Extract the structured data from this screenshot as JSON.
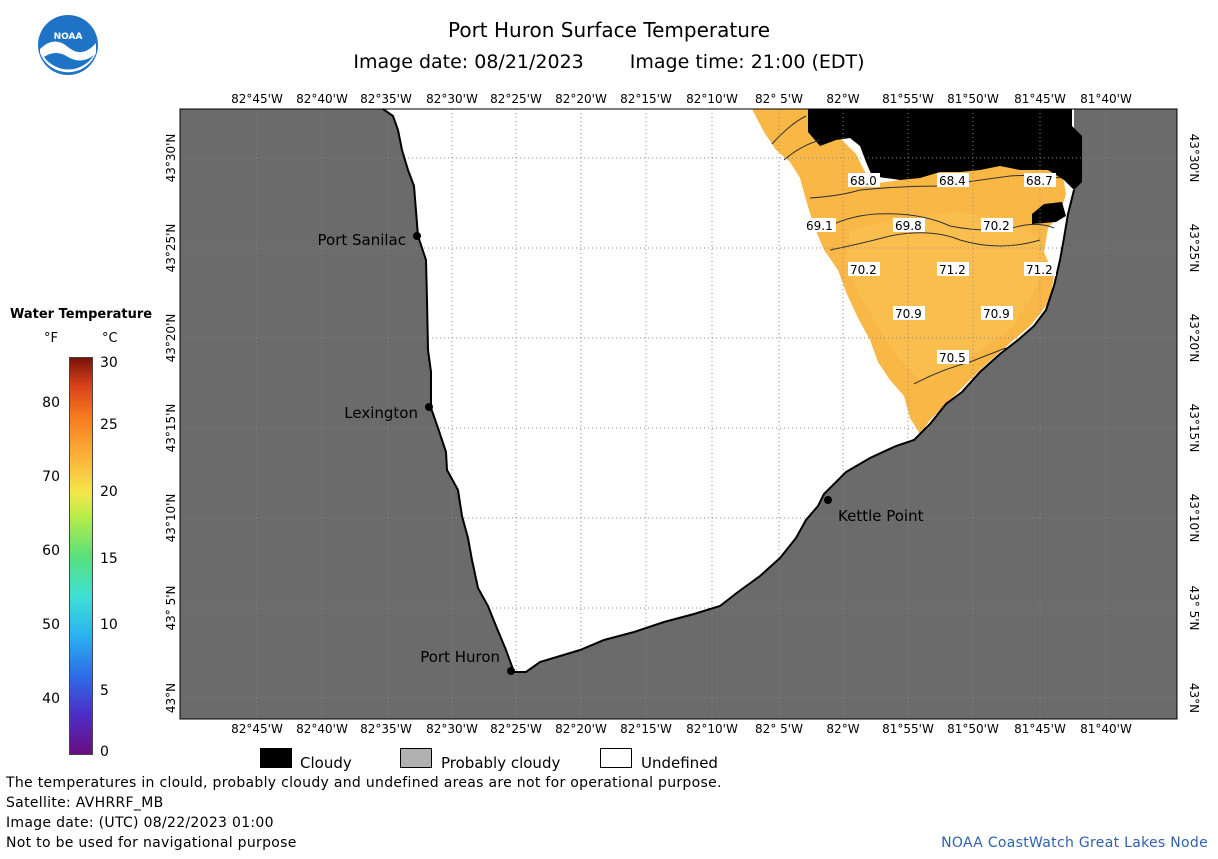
{
  "header": {
    "title": "Port Huron Surface Temperature",
    "image_date": "Image date: 08/21/2023",
    "image_time": "Image time: 21:00 (EDT)"
  },
  "logo": {
    "text": "NOAA",
    "icon": "noaa-logo-icon",
    "color": "#1f73c7"
  },
  "map": {
    "lon_labels": [
      "82°45'W",
      "82°40'W",
      "82°35'W",
      "82°30'W",
      "82°25'W",
      "82°20'W",
      "82°15'W",
      "82°10'W",
      "82° 5'W",
      "82°W",
      "81°55'W",
      "81°50'W",
      "81°45'W",
      "81°40'W"
    ],
    "lat_labels": [
      "43°30'N",
      "43°25'N",
      "43°20'N",
      "43°15'N",
      "43°10'N",
      "43° 5'N",
      "43°N"
    ],
    "cities": [
      {
        "name": "Port Sanilac"
      },
      {
        "name": "Lexington"
      },
      {
        "name": "Kettle Point"
      },
      {
        "name": "Port Huron"
      }
    ],
    "temperature_labels": [
      "68.0",
      "68.4",
      "68.7",
      "69.1",
      "69.8",
      "70.2",
      "70.2",
      "71.2",
      "71.2",
      "70.9",
      "70.9",
      "70.5"
    ],
    "colors": {
      "land": "#6b6b6b",
      "cloud": "#000000",
      "undefined": "#ffffff",
      "water_warm": "#f9b745"
    }
  },
  "scale": {
    "title": "Water Temperature",
    "unit_f": "°F",
    "unit_c": "°C",
    "ticks_f": [
      "80",
      "70",
      "60",
      "50",
      "40"
    ],
    "ticks_c": [
      "30",
      "25",
      "20",
      "15",
      "10",
      "5",
      "0"
    ]
  },
  "legend": {
    "cloudy": "Cloudy",
    "probably_cloudy": "Probably cloudy",
    "undefined": "Undefined"
  },
  "footer": {
    "line1": "The temperatures in clould, probably cloudy and undefined areas are not for operational purpose.",
    "line2": "Satellite: AVHRRF_MB",
    "line3": "Image date: (UTC) 08/22/2023  01:00",
    "line4": "Not to be used for navigational purpose",
    "credit": "NOAA CoastWatch Great Lakes Node"
  }
}
